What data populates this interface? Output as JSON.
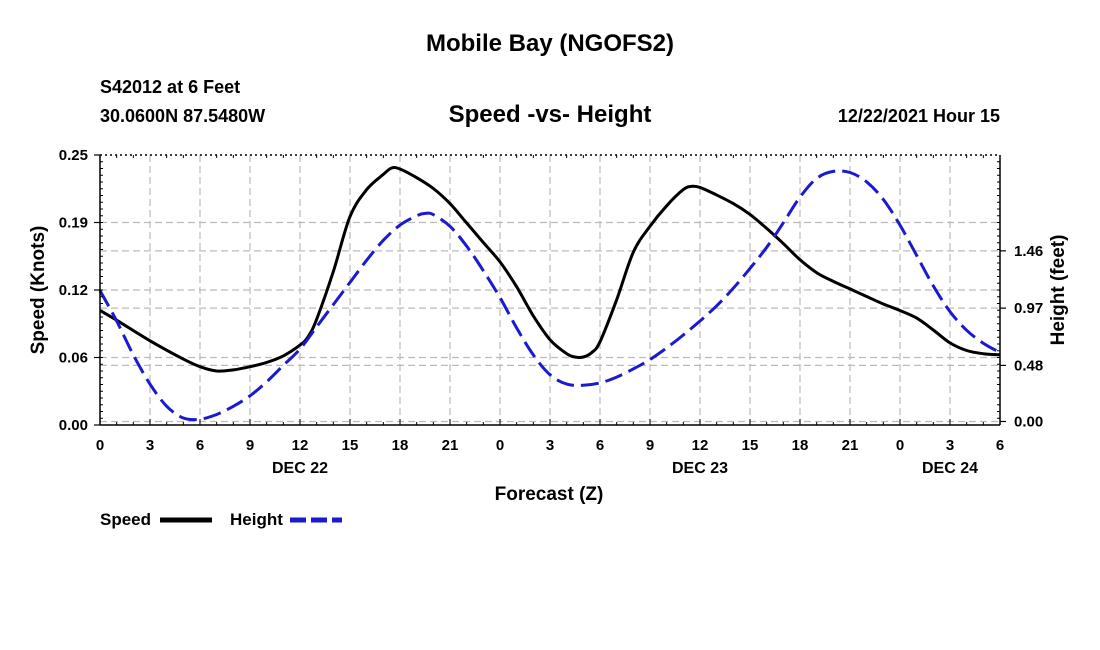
{
  "header": {
    "title": "Mobile Bay (NGOFS2)",
    "station": "S42012 at 6 Feet",
    "coords": "30.0600N  87.5480W",
    "subtitle": "Speed -vs- Height",
    "datetime": "12/22/2021 Hour 15"
  },
  "footer": {
    "title": "Mobile Bay (NGOFS2)"
  },
  "chart_data": {
    "type": "line",
    "xlabel": "Forecast (Z)",
    "ylabel_left": "Speed (Knots)",
    "ylabel_right": "Height (feet)",
    "x_range": [
      0,
      54
    ],
    "x_tick_labels": [
      "0",
      "3",
      "6",
      "9",
      "12",
      "15",
      "18",
      "21",
      "0",
      "3",
      "6",
      "9",
      "12",
      "15",
      "18",
      "21",
      "0",
      "3",
      "6"
    ],
    "date_labels": [
      {
        "x": 12,
        "label": "DEC 22"
      },
      {
        "x": 36,
        "label": "DEC 23"
      },
      {
        "x": 51,
        "label": "DEC 24"
      }
    ],
    "ylim_left": [
      0,
      0.25
    ],
    "y_ticks_left": [
      "0.00",
      "0.06",
      "0.12",
      "0.19",
      "0.25"
    ],
    "y_ticks_left_values": [
      0,
      0.0625,
      0.125,
      0.1875,
      0.25
    ],
    "ylim_right": [
      -0.03,
      2.28
    ],
    "y_ticks_right": [
      "0.00",
      "0.48",
      "0.97",
      "1.46"
    ],
    "y_ticks_right_values": [
      0,
      0.48,
      0.97,
      1.46
    ],
    "grid": true,
    "legend": "bottom-left",
    "series": [
      {
        "name": "Speed",
        "axis": "left",
        "style": "solid",
        "color": "#000000",
        "x": [
          0,
          1,
          3,
          5,
          6,
          7,
          8,
          9,
          10,
          11,
          12,
          12.5,
          13,
          14,
          15,
          16,
          17,
          17.5,
          18,
          19,
          20,
          21,
          22,
          23,
          24,
          25,
          26,
          27,
          28,
          28.5,
          29,
          29.5,
          30,
          31,
          32,
          33,
          34,
          35,
          35.5,
          36,
          37,
          38,
          39,
          40,
          41,
          42,
          43,
          44,
          45,
          46,
          47,
          48,
          49,
          50,
          51,
          52,
          53,
          54
        ],
        "values": [
          0.106,
          0.097,
          0.078,
          0.061,
          0.054,
          0.05,
          0.051,
          0.054,
          0.058,
          0.064,
          0.074,
          0.082,
          0.098,
          0.142,
          0.193,
          0.218,
          0.232,
          0.238,
          0.237,
          0.229,
          0.219,
          0.205,
          0.187,
          0.169,
          0.151,
          0.128,
          0.101,
          0.079,
          0.066,
          0.063,
          0.063,
          0.067,
          0.077,
          0.116,
          0.16,
          0.184,
          0.203,
          0.218,
          0.221,
          0.22,
          0.213,
          0.205,
          0.195,
          0.182,
          0.168,
          0.153,
          0.141,
          0.133,
          0.126,
          0.119,
          0.112,
          0.106,
          0.099,
          0.088,
          0.076,
          0.069,
          0.066,
          0.065
        ]
      },
      {
        "name": "Height",
        "axis": "right",
        "style": "dashed",
        "color": "#1a1ad0",
        "x": [
          0,
          1,
          2,
          3,
          4,
          5,
          6,
          7,
          8,
          9,
          10,
          11,
          12,
          13,
          14,
          15,
          16,
          17,
          18,
          19,
          19.5,
          20,
          21,
          22,
          23,
          24,
          25,
          26,
          27,
          28,
          29,
          30,
          31,
          32,
          33,
          34,
          35,
          36,
          37,
          38,
          39,
          40,
          41,
          42,
          43,
          44,
          45,
          46,
          47,
          48,
          49,
          50,
          51,
          52,
          53,
          54
        ],
        "values": [
          1.12,
          0.86,
          0.57,
          0.32,
          0.13,
          0.03,
          0.02,
          0.06,
          0.13,
          0.22,
          0.34,
          0.48,
          0.62,
          0.81,
          1.0,
          1.19,
          1.38,
          1.55,
          1.68,
          1.76,
          1.78,
          1.77,
          1.67,
          1.5,
          1.29,
          1.06,
          0.8,
          0.57,
          0.4,
          0.32,
          0.31,
          0.33,
          0.38,
          0.45,
          0.53,
          0.63,
          0.74,
          0.86,
          0.99,
          1.14,
          1.31,
          1.49,
          1.7,
          1.92,
          2.08,
          2.14,
          2.13,
          2.05,
          1.9,
          1.68,
          1.42,
          1.16,
          0.94,
          0.78,
          0.67,
          0.59
        ]
      }
    ]
  }
}
